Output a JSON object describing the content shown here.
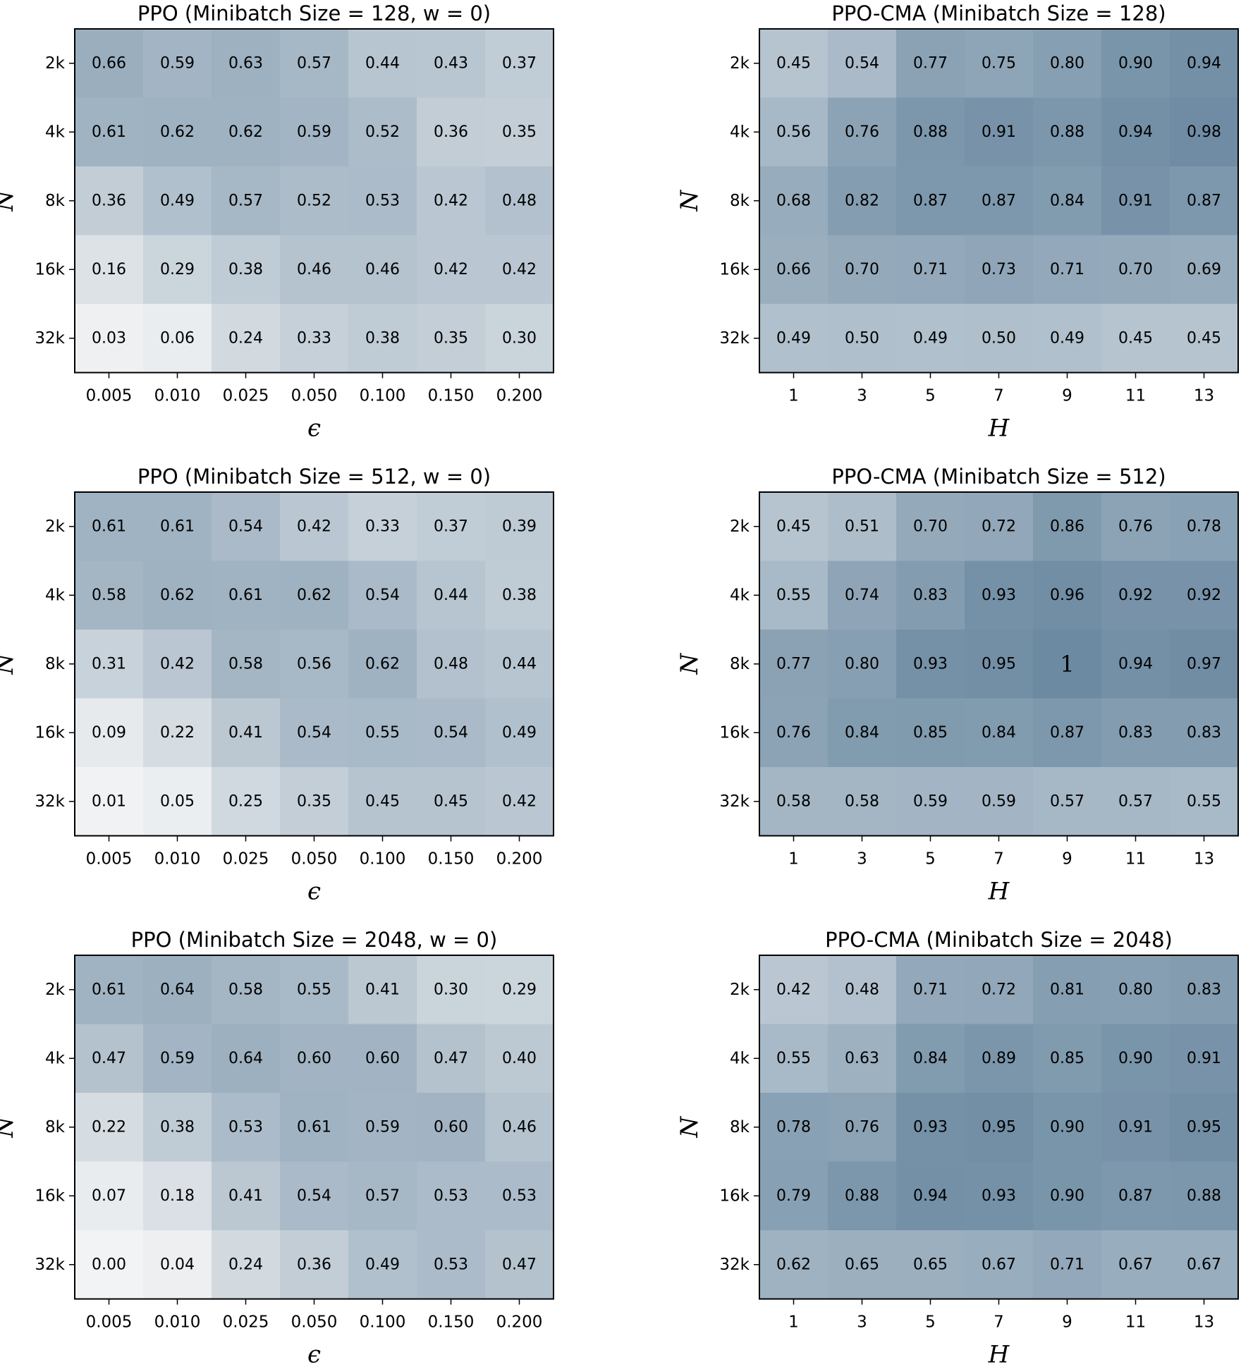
{
  "chart_data": [
    {
      "type": "heatmap",
      "title": "PPO (Minibatch Size = 128, w = 0)",
      "xlabel": "ϵ",
      "ylabel": "N",
      "x": [
        "0.005",
        "0.010",
        "0.025",
        "0.050",
        "0.100",
        "0.150",
        "0.200"
      ],
      "y": [
        "2k",
        "4k",
        "8k",
        "16k",
        "32k"
      ],
      "values": [
        [
          "0.66",
          "0.59",
          "0.63",
          "0.57",
          "0.44",
          "0.43",
          "0.37"
        ],
        [
          "0.61",
          "0.62",
          "0.62",
          "0.59",
          "0.52",
          "0.36",
          "0.35"
        ],
        [
          "0.36",
          "0.49",
          "0.57",
          "0.52",
          "0.53",
          "0.42",
          "0.48"
        ],
        [
          "0.16",
          "0.29",
          "0.38",
          "0.46",
          "0.46",
          "0.42",
          "0.42"
        ],
        [
          "0.03",
          "0.06",
          "0.24",
          "0.33",
          "0.38",
          "0.35",
          "0.30"
        ]
      ]
    },
    {
      "type": "heatmap",
      "title": "PPO-CMA (Minibatch Size = 128)",
      "xlabel": "H",
      "ylabel": "N",
      "x": [
        "1",
        "3",
        "5",
        "7",
        "9",
        "11",
        "13"
      ],
      "y": [
        "2k",
        "4k",
        "8k",
        "16k",
        "32k"
      ],
      "values": [
        [
          "0.45",
          "0.54",
          "0.77",
          "0.75",
          "0.80",
          "0.90",
          "0.94"
        ],
        [
          "0.56",
          "0.76",
          "0.88",
          "0.91",
          "0.88",
          "0.94",
          "0.98"
        ],
        [
          "0.68",
          "0.82",
          "0.87",
          "0.87",
          "0.84",
          "0.91",
          "0.87"
        ],
        [
          "0.66",
          "0.70",
          "0.71",
          "0.73",
          "0.71",
          "0.70",
          "0.69"
        ],
        [
          "0.49",
          "0.50",
          "0.49",
          "0.50",
          "0.49",
          "0.45",
          "0.45"
        ]
      ]
    },
    {
      "type": "heatmap",
      "title": "PPO (Minibatch Size = 512, w = 0)",
      "xlabel": "ϵ",
      "ylabel": "N",
      "x": [
        "0.005",
        "0.010",
        "0.025",
        "0.050",
        "0.100",
        "0.150",
        "0.200"
      ],
      "y": [
        "2k",
        "4k",
        "8k",
        "16k",
        "32k"
      ],
      "values": [
        [
          "0.61",
          "0.61",
          "0.54",
          "0.42",
          "0.33",
          "0.37",
          "0.39"
        ],
        [
          "0.58",
          "0.62",
          "0.61",
          "0.62",
          "0.54",
          "0.44",
          "0.38"
        ],
        [
          "0.31",
          "0.42",
          "0.58",
          "0.56",
          "0.62",
          "0.48",
          "0.44"
        ],
        [
          "0.09",
          "0.22",
          "0.41",
          "0.54",
          "0.55",
          "0.54",
          "0.49"
        ],
        [
          "0.01",
          "0.05",
          "0.25",
          "0.35",
          "0.45",
          "0.45",
          "0.42"
        ]
      ]
    },
    {
      "type": "heatmap",
      "title": "PPO-CMA (Minibatch Size = 512)",
      "xlabel": "H",
      "ylabel": "N",
      "x": [
        "1",
        "3",
        "5",
        "7",
        "9",
        "11",
        "13"
      ],
      "y": [
        "2k",
        "4k",
        "8k",
        "16k",
        "32k"
      ],
      "values": [
        [
          "0.45",
          "0.51",
          "0.70",
          "0.72",
          "0.86",
          "0.76",
          "0.78"
        ],
        [
          "0.55",
          "0.74",
          "0.83",
          "0.93",
          "0.96",
          "0.92",
          "0.92"
        ],
        [
          "0.77",
          "0.80",
          "0.93",
          "0.95",
          "1",
          "0.94",
          "0.97"
        ],
        [
          "0.76",
          "0.84",
          "0.85",
          "0.84",
          "0.87",
          "0.83",
          "0.83"
        ],
        [
          "0.58",
          "0.58",
          "0.59",
          "0.59",
          "0.57",
          "0.57",
          "0.55"
        ]
      ]
    },
    {
      "type": "heatmap",
      "title": "PPO (Minibatch Size = 2048, w = 0)",
      "xlabel": "ϵ",
      "ylabel": "N",
      "x": [
        "0.005",
        "0.010",
        "0.025",
        "0.050",
        "0.100",
        "0.150",
        "0.200"
      ],
      "y": [
        "2k",
        "4k",
        "8k",
        "16k",
        "32k"
      ],
      "values": [
        [
          "0.61",
          "0.64",
          "0.58",
          "0.55",
          "0.41",
          "0.30",
          "0.29"
        ],
        [
          "0.47",
          "0.59",
          "0.64",
          "0.60",
          "0.60",
          "0.47",
          "0.40"
        ],
        [
          "0.22",
          "0.38",
          "0.53",
          "0.61",
          "0.59",
          "0.60",
          "0.46"
        ],
        [
          "0.07",
          "0.18",
          "0.41",
          "0.54",
          "0.57",
          "0.53",
          "0.53"
        ],
        [
          "0.00",
          "0.04",
          "0.24",
          "0.36",
          "0.49",
          "0.53",
          "0.47"
        ]
      ]
    },
    {
      "type": "heatmap",
      "title": "PPO-CMA (Minibatch Size = 2048)",
      "xlabel": "H",
      "ylabel": "N",
      "x": [
        "1",
        "3",
        "5",
        "7",
        "9",
        "11",
        "13"
      ],
      "y": [
        "2k",
        "4k",
        "8k",
        "16k",
        "32k"
      ],
      "values": [
        [
          "0.42",
          "0.48",
          "0.71",
          "0.72",
          "0.81",
          "0.80",
          "0.83"
        ],
        [
          "0.55",
          "0.63",
          "0.84",
          "0.89",
          "0.85",
          "0.90",
          "0.91"
        ],
        [
          "0.78",
          "0.76",
          "0.93",
          "0.95",
          "0.90",
          "0.91",
          "0.95"
        ],
        [
          "0.79",
          "0.88",
          "0.94",
          "0.93",
          "0.90",
          "0.87",
          "0.88"
        ],
        [
          "0.62",
          "0.65",
          "0.65",
          "0.67",
          "0.71",
          "0.67",
          "0.67"
        ]
      ]
    }
  ],
  "colors": {
    "low": "#f2f3f4",
    "high": "#6c8aa2",
    "frame": "#000000"
  }
}
